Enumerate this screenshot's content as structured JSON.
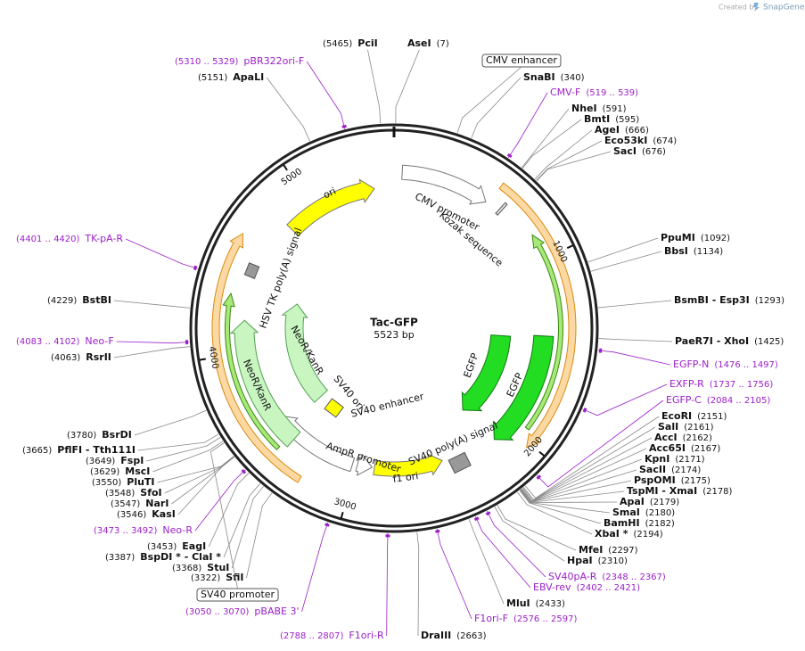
{
  "header": {
    "credit": "Created by",
    "brand": "SnapGene"
  },
  "plasmid": {
    "name": "Tac-GFP",
    "length": "5523 bp",
    "ticks": [
      "1000",
      "2000",
      "3000",
      "4000",
      "5000"
    ]
  },
  "features": [
    "ori",
    "CMV promoter",
    "Kozak sequence",
    "HSV TK poly(A) signal",
    "NeoR/KanR",
    "NeoR/KanR",
    "SV40 ori",
    "SV40 enhancer",
    "AmpR promoter",
    "f1 ori",
    "SV40 poly(A) signal",
    "EGFP",
    "EGFP"
  ],
  "boxed_features": [
    "CMV enhancer",
    "SV40 promoter"
  ],
  "enzymes": [
    {
      "name": "PciI",
      "pos": "(5465)"
    },
    {
      "name": "AseI",
      "pos": "(7)"
    },
    {
      "name": "ApaLI",
      "pos": "(5151)"
    },
    {
      "name": "SnaBI",
      "pos": "(340)"
    },
    {
      "name": "NheI",
      "pos": "(591)"
    },
    {
      "name": "BmtI",
      "pos": "(595)"
    },
    {
      "name": "AgeI",
      "pos": "(666)"
    },
    {
      "name": "Eco53kI",
      "pos": "(674)"
    },
    {
      "name": "SacI",
      "pos": "(676)"
    },
    {
      "name": "PpuMI",
      "pos": "(1092)"
    },
    {
      "name": "BbsI",
      "pos": "(1134)"
    },
    {
      "name": "BsmBI  - Esp3I",
      "pos": "(1293)"
    },
    {
      "name": "BstBI",
      "pos": "(4229)"
    },
    {
      "name": "PaeR7I  - XhoI",
      "pos": "(1425)"
    },
    {
      "name": "RsrII",
      "pos": "(4063)"
    },
    {
      "name": "EcoRI",
      "pos": "(2151)"
    },
    {
      "name": "SalI",
      "pos": "(2161)"
    },
    {
      "name": "AccI",
      "pos": "(2162)"
    },
    {
      "name": "Acc65I",
      "pos": "(2167)"
    },
    {
      "name": "KpnI",
      "pos": "(2171)"
    },
    {
      "name": "SacII",
      "pos": "(2174)"
    },
    {
      "name": "PspOMI",
      "pos": "(2175)"
    },
    {
      "name": "TspMI  - XmaI",
      "pos": "(2178)"
    },
    {
      "name": "ApaI",
      "pos": "(2179)"
    },
    {
      "name": "SmaI",
      "pos": "(2180)"
    },
    {
      "name": "BamHI",
      "pos": "(2182)"
    },
    {
      "name": "XbaI *",
      "pos": "(2194)"
    },
    {
      "name": "MfeI",
      "pos": "(2297)"
    },
    {
      "name": "HpaI",
      "pos": "(2310)"
    },
    {
      "name": "MluI",
      "pos": "(2433)"
    },
    {
      "name": "DraIII",
      "pos": "(2663)"
    },
    {
      "name": "BsrDI",
      "pos": "(3780)"
    },
    {
      "name": "PflFI  - Tth111I",
      "pos": "(3665)"
    },
    {
      "name": "FspI",
      "pos": "(3649)"
    },
    {
      "name": "MscI",
      "pos": "(3629)"
    },
    {
      "name": "PluTI",
      "pos": "(3550)"
    },
    {
      "name": "SfoI",
      "pos": "(3548)"
    },
    {
      "name": "NarI",
      "pos": "(3547)"
    },
    {
      "name": "KasI",
      "pos": "(3546)"
    },
    {
      "name": "EagI",
      "pos": "(3453)"
    },
    {
      "name": "BspDI *  - ClaI *",
      "pos": "(3387)"
    },
    {
      "name": "StuI",
      "pos": "(3368)"
    },
    {
      "name": "SfiI",
      "pos": "(3322)"
    }
  ],
  "primers": [
    {
      "name": "pBR322ori-F",
      "range": "(5310 .. 5329)"
    },
    {
      "name": "CMV-F",
      "range": "(519 .. 539)"
    },
    {
      "name": "TK-pA-R",
      "range": "(4401 .. 4420)"
    },
    {
      "name": "Neo-F",
      "range": "(4083 .. 4102)"
    },
    {
      "name": "EGFP-N",
      "range": "(1476 .. 1497)"
    },
    {
      "name": "EXFP-R",
      "range": "(1737 .. 1756)"
    },
    {
      "name": "EGFP-C",
      "range": "(2084 .. 2105)"
    },
    {
      "name": "Neo-R",
      "range": "(3473 .. 3492)"
    },
    {
      "name": "SV40pA-R",
      "range": "(2348 .. 2367)"
    },
    {
      "name": "EBV-rev",
      "range": "(2402 .. 2421)"
    },
    {
      "name": "pBABE 3'",
      "range": "(3050 .. 3070)"
    },
    {
      "name": "F1ori-F",
      "range": "(2576 .. 2597)"
    },
    {
      "name": "F1ori-R",
      "range": "(2788 .. 2807)"
    }
  ]
}
